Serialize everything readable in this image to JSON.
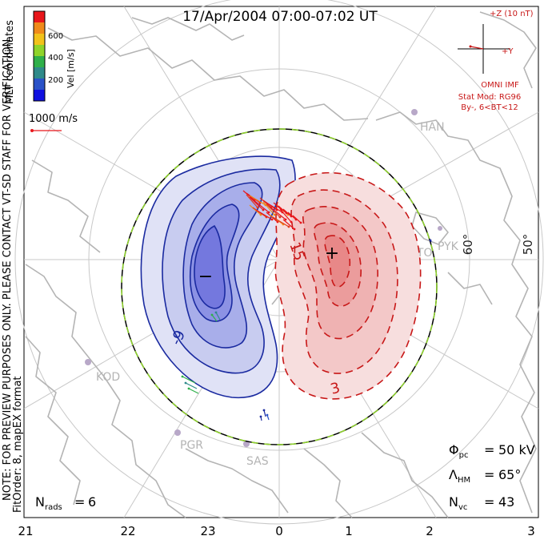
{
  "title": "17/Apr/2004 07:00-07:02 UT",
  "colorbar": {
    "label": "Vel [m/s]",
    "ticks": [
      "600",
      "400",
      "200"
    ],
    "colors": [
      "#e8161b",
      "#f08a1a",
      "#f2c21a",
      "#8fd42a",
      "#2fb04a",
      "#2f8a8a",
      "#2a52c8",
      "#1010e0"
    ]
  },
  "coord_label": "MLT coordinates",
  "notes": [
    "NOTE: FOR PREVIEW PURPOSES ONLY. PLEASE CONTACT VT-SD STAFF FOR VERIFICATION.",
    "FitOrder: 8, mapEX format"
  ],
  "ref_vector": "1000 m/s",
  "imf": {
    "z_label": "+Z (10 nT)",
    "y_label": "+Y",
    "source": "OMNI IMF",
    "model": "Stat Mod: RG96",
    "condition": "By-, 6<BT<12"
  },
  "stations": [
    "HAN",
    "STO",
    "PYK",
    "KOD",
    "PGR",
    "SAS"
  ],
  "latitude_labels": [
    "60°",
    "50°"
  ],
  "mlt_ticks": [
    "21",
    "22",
    "23",
    "0",
    "1",
    "2",
    "3"
  ],
  "contour_labels": [
    "-9",
    "15",
    "3"
  ],
  "extrema": {
    "min": "−",
    "max": "+"
  },
  "stats": {
    "phi_pc": {
      "symbol": "Φ",
      "sub": "pc",
      "eq": "=",
      "value": "50 kV"
    },
    "lambda_hm": {
      "symbol": "Λ",
      "sub": "HM",
      "eq": "=",
      "value": "65°"
    },
    "n_vc": {
      "symbol": "N",
      "sub": "vc",
      "eq": "=",
      "value": "43"
    },
    "n_rads": {
      "symbol": "N",
      "sub": "rads",
      "eq": "=",
      "value": "6"
    }
  }
}
